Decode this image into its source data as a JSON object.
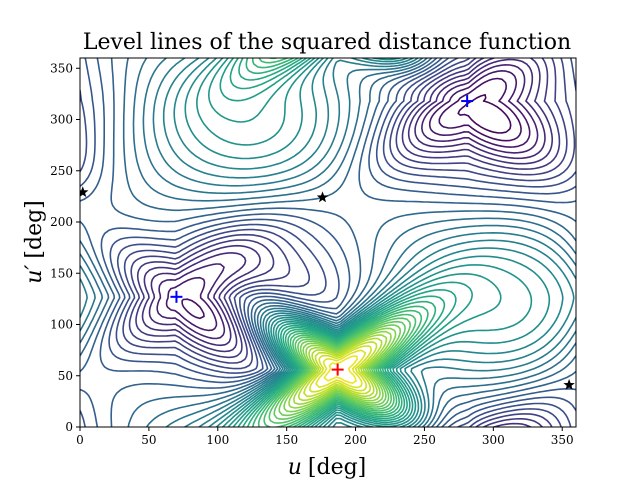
{
  "chart_data": {
    "type": "contour",
    "title": "Level lines of the squared distance function",
    "xlabel_var": "u",
    "xlabel_unit": "[deg]",
    "ylabel_var": "u′",
    "ylabel_unit": "[deg]",
    "xlim": [
      0,
      360
    ],
    "ylim": [
      0,
      360
    ],
    "xticks": [
      0,
      50,
      100,
      150,
      200,
      250,
      300,
      350
    ],
    "yticks": [
      0,
      50,
      100,
      150,
      200,
      250,
      300,
      350
    ],
    "colormap": "viridis",
    "level_count": 40,
    "minima": [
      {
        "x": 70,
        "y": 127,
        "marker": "plus",
        "color": "#0000ff"
      },
      {
        "x": 281,
        "y": 318,
        "marker": "plus",
        "color": "#0000ff"
      }
    ],
    "maximum": {
      "x": 187,
      "y": 56,
      "marker": "plus",
      "color": "#ff0000"
    },
    "saddles": [
      {
        "x": 2,
        "y": 229,
        "marker": "star",
        "color": "#000000"
      },
      {
        "x": 176,
        "y": 224,
        "marker": "star",
        "color": "#000000"
      },
      {
        "x": 355,
        "y": 41,
        "marker": "star",
        "color": "#000000"
      }
    ]
  }
}
